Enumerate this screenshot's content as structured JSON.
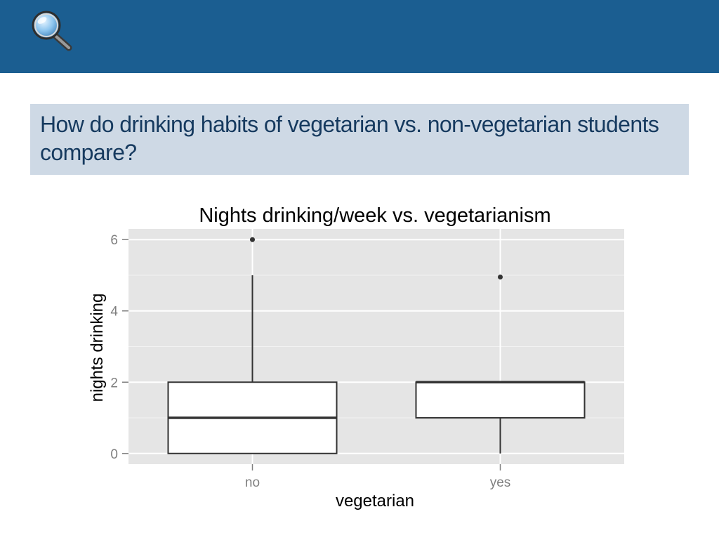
{
  "header": {
    "icon": "magnifier-icon",
    "color": "#1b5e91"
  },
  "question": {
    "text": "How do drinking habits of vegetarian vs. non-vegetarian students compare?",
    "background": "#ced9e5"
  },
  "chart_data": {
    "type": "boxplot",
    "title": "Nights drinking/week vs. vegetarianism",
    "xlabel": "vegetarian",
    "ylabel": "nights drinking",
    "categories": [
      "no",
      "yes"
    ],
    "yticks": [
      "0",
      "2",
      "4",
      "6"
    ],
    "ylim": [
      -0.3,
      6.3
    ],
    "grid": true,
    "panel_color": "#e5e5e5",
    "boxes": [
      {
        "category": "no",
        "min": 0,
        "q1": 0,
        "median": 1,
        "q3": 2,
        "max": 5,
        "outliers": [
          6
        ]
      },
      {
        "category": "yes",
        "min": 0,
        "q1": 1,
        "median": 2,
        "q3": 2,
        "max": 2,
        "outliers": [
          4.95
        ]
      }
    ]
  }
}
